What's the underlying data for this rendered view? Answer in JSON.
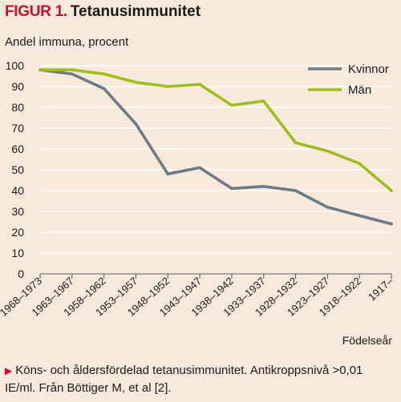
{
  "figure": {
    "label": "FIGUR 1.",
    "title": "Tetanusimmunitet",
    "caption_line1": "Köns- och åldersfördelad tetanusimmunitet. Antikroppsnivå >0,01",
    "caption_line2": "IE/ml. Från Böttiger M, et al [2]."
  },
  "chart_data": {
    "type": "line",
    "ylabel": "Andel immuna, procent",
    "xlabel": "Födelseår",
    "ylim": [
      0,
      100
    ],
    "yticks": [
      0,
      10,
      20,
      30,
      40,
      50,
      60,
      70,
      80,
      90,
      100
    ],
    "grid": true,
    "legend_position": "top-right",
    "categories": [
      "1968–1973",
      "1963–1967",
      "1958–1962",
      "1953–1957",
      "1948–1952",
      "1943–1947",
      "1938–1942",
      "1933–1937",
      "1928–1932",
      "1923–1927",
      "1918–1922",
      "1917–"
    ],
    "series": [
      {
        "name": "Kvinnor",
        "color": "#6d7b86",
        "values": [
          98,
          96,
          89,
          72,
          48,
          51,
          41,
          42,
          40,
          32,
          28,
          24
        ]
      },
      {
        "name": "Män",
        "color": "#9fbd1c",
        "values": [
          98,
          98,
          96,
          92,
          90,
          91,
          81,
          83,
          63,
          59,
          53,
          40
        ]
      }
    ]
  }
}
